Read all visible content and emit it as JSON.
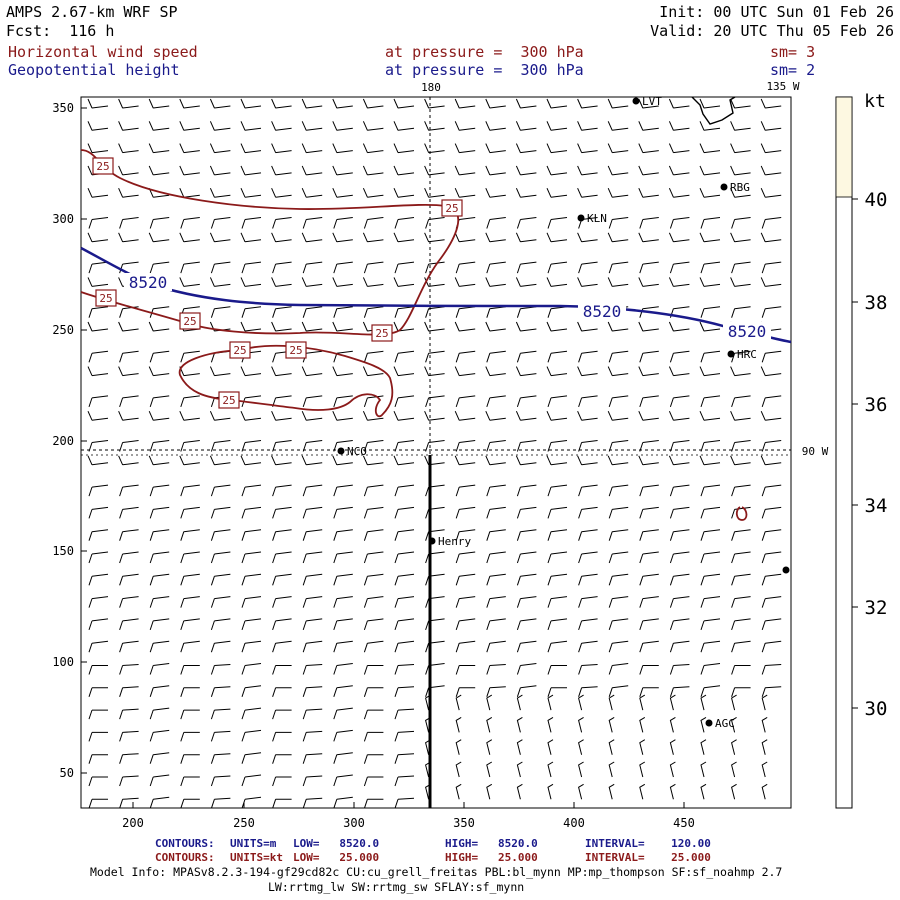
{
  "header": {
    "model": "AMPS 2.67-km WRF SP",
    "forecast": "Fcst:  116 h",
    "init": "Init: 00 UTC Sun 01 Feb 26",
    "valid": "Valid: 20 UTC Thu 05 Feb 26",
    "field1": {
      "name": "Horizontal wind speed",
      "level": "at pressure =  300 hPa",
      "smooth": "sm= 3"
    },
    "field2": {
      "name": "Geopotential height",
      "level": "at pressure =  300 hPa",
      "smooth": "sm= 2"
    }
  },
  "map": {
    "x_ticks": [
      "200",
      "250",
      "300",
      "350",
      "400",
      "450"
    ],
    "y_ticks": [
      "350",
      "300",
      "250",
      "200",
      "150",
      "100",
      "50"
    ],
    "meridian_labels": {
      "top_180": "180",
      "top_135w": "135 W",
      "right_90w": "90 W"
    },
    "stations": [
      "LVT",
      "RBG",
      "KLN",
      "HRC",
      "NCO",
      "Henry",
      "AGC"
    ],
    "contour_labels": {
      "height": "8520",
      "speed": "25"
    },
    "colors": {
      "speed": "#8b1a1a",
      "height": "#1a1a8b",
      "barb": "#000000"
    }
  },
  "colorbar": {
    "unit": "kt",
    "ticks": [
      "40",
      "38",
      "36",
      "34",
      "32",
      "30"
    ],
    "color": "#fdf8e1"
  },
  "footer": {
    "line1": {
      "contours": "CONTOURS:",
      "units": "UNITS=m",
      "low": "LOW=   8520.0",
      "high": "HIGH=   8520.0",
      "interval": "INTERVAL=    120.00"
    },
    "line2": {
      "contours": "CONTOURS:",
      "units": "UNITS=kt",
      "low": "LOW=   25.000",
      "high": "HIGH=   25.000",
      "interval": "INTERVAL=    25.000"
    },
    "model_info": "Model Info: MPASv8.2.3-194-gf29cd82c CU:cu_grell_freitas PBL:bl_mynn MP:mp_thompson SF:sf_noahmp 2.7",
    "model_info2": "LW:rrtmg_lw SW:rrtmg_sw SFLAY:sf_mynn"
  }
}
